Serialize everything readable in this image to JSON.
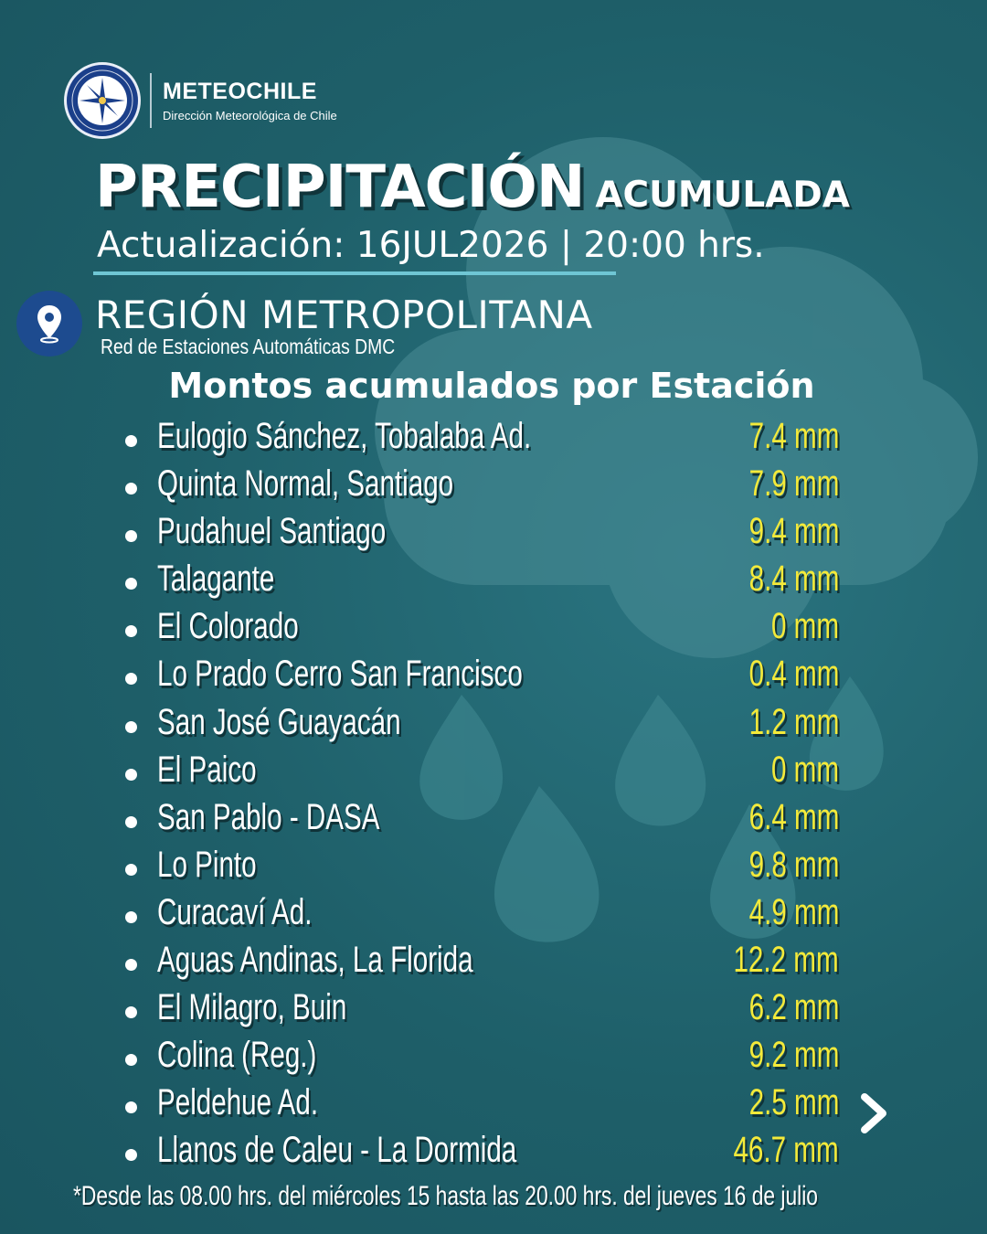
{
  "brand": {
    "name": "METEOCHILE",
    "subtitle": "Dirección Meteorológica de Chile"
  },
  "title": {
    "main": "PRECIPITACIÓN",
    "sub": "ACUMULADA"
  },
  "update": "Actualización: 16JUL2026 | 20:00 hrs.",
  "region": {
    "name": "REGIÓN METROPOLITANA",
    "network": "Red de Estaciones Automáticas DMC"
  },
  "section_heading": "Montos acumulados por Estación",
  "stations": [
    {
      "name": "Eulogio Sánchez, Tobalaba Ad.",
      "value": "7.4 mm"
    },
    {
      "name": "Quinta Normal, Santiago",
      "value": "7.9 mm"
    },
    {
      "name": "Pudahuel Santiago",
      "value": "9.4 mm"
    },
    {
      "name": "Talagante",
      "value": "8.4 mm"
    },
    {
      "name": "El Colorado",
      "value": "0 mm"
    },
    {
      "name": "Lo Prado Cerro San Francisco",
      "value": "0.4 mm"
    },
    {
      "name": "San José Guayacán",
      "value": "1.2 mm"
    },
    {
      "name": "El Paico",
      "value": "0 mm"
    },
    {
      "name": "San Pablo - DASA",
      "value": "6.4 mm"
    },
    {
      "name": "Lo Pinto",
      "value": "9.8 mm"
    },
    {
      "name": "Curacaví Ad.",
      "value": "4.9 mm"
    },
    {
      "name": "Aguas Andinas, La Florida",
      "value": "12.2 mm"
    },
    {
      "name": "El Milagro, Buin",
      "value": "6.2 mm"
    },
    {
      "name": "Colina (Reg.)",
      "value": "9.2 mm"
    },
    {
      "name": "Peldehue Ad.",
      "value": "2.5 mm"
    },
    {
      "name": "Llanos de Caleu - La Dormida",
      "value": "46.7 mm"
    }
  ],
  "footnote": "*Desde las 08.00 hrs. del miércoles 15 hasta las 20.00 hrs. del jueves 16 de julio",
  "colors": {
    "background": "#1d5c66",
    "value_yellow": "#f4ea3a",
    "accent_line": "#6fc6d4",
    "pin_blue": "#1d4b8f"
  },
  "icons": {
    "pin": "location-pin-icon",
    "next": "chevron-right-icon",
    "background": "rain-cloud-icon"
  }
}
